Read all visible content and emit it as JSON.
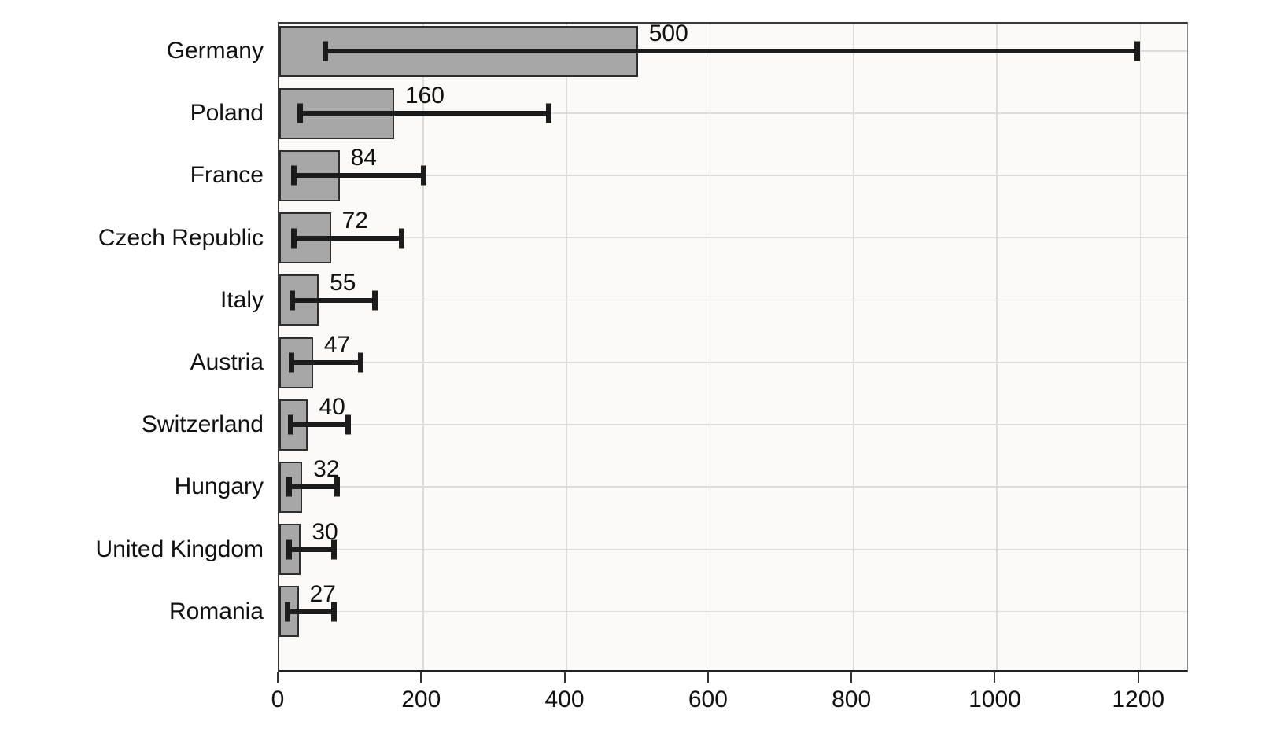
{
  "chart_data": {
    "type": "bar",
    "orientation": "horizontal",
    "title": "",
    "xlabel": "",
    "ylabel": "",
    "categories": [
      "Germany",
      "Poland",
      "France",
      "Czech Republic",
      "Italy",
      "Austria",
      "Switzerland",
      "Hungary",
      "United Kingdom",
      "Romania"
    ],
    "values": [
      500,
      160,
      84,
      72,
      55,
      47,
      40,
      32,
      30,
      27
    ],
    "value_labels": [
      "500",
      "160",
      "84",
      "72",
      "55",
      "47",
      "40",
      "32",
      "30",
      "27"
    ],
    "error_low": [
      60,
      25,
      17,
      17,
      14,
      13,
      12,
      10,
      10,
      8
    ],
    "error_high": [
      1200,
      380,
      205,
      175,
      137,
      117,
      100,
      85,
      80,
      80
    ],
    "xlim": [
      0,
      1265
    ],
    "xticks": [
      0,
      200,
      400,
      600,
      800,
      1000,
      1200
    ],
    "xtick_labels": [
      "0",
      "200",
      "400",
      "600",
      "800",
      "1000",
      "1200"
    ],
    "grid": "both",
    "legend": "none",
    "colors": {
      "bar_fill": "#a7a7a7",
      "bar_border": "#2e2e2e",
      "error_bar": "#1c1c1c",
      "gridline": "#dcdcdc",
      "plot_background": "#fbfaf8",
      "page_background": "#ffffff",
      "text": "#111111",
      "axis_spine": "#222222"
    }
  }
}
